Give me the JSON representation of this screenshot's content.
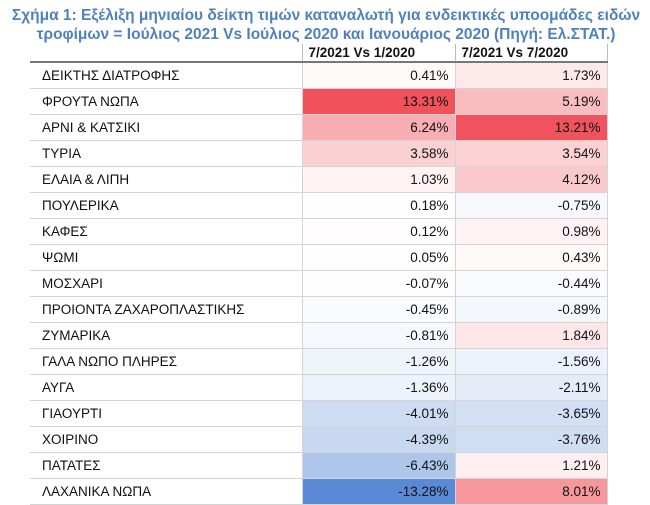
{
  "title": "Σχήμα 1: Εξέλιξη μηνιαίου δείκτη τιμών καταναλωτή για ενδεικτικές υποομάδες ειδών τροφίμων = Ιούλιος 2021 Vs Ιούλιος 2020 και Ιανουάριος 2020 (Πηγή: Ελ.ΣΤΑΤ.)",
  "chart_data": {
    "type": "heatmap",
    "title": "Σχήμα 1: Εξέλιξη μηνιαίου δείκτη τιμών καταναλωτή για ενδεικτικές υποομάδες ειδών τροφίμων = Ιούλιος 2021 Vs Ιούλιος 2020 και Ιανουάριος 2020 (Πηγή: Ελ.ΣΤΑΤ.)",
    "columns": [
      "7/2021 Vs 1/2020",
      "7/2021 Vs 7/2020"
    ],
    "rows": [
      {
        "label": "ΔΕΙΚΤΗΣ ΔΙΑΤΡΟΦΗΣ",
        "values": [
          0.41,
          1.73
        ],
        "labels": [
          "0.41%",
          "1.73%"
        ]
      },
      {
        "label": "ΦΡΟΥΤΑ ΝΩΠΑ",
        "values": [
          13.31,
          5.19
        ],
        "labels": [
          "13.31%",
          "5.19%"
        ]
      },
      {
        "label": "ΑΡΝΙ & ΚΑΤΣΙΚΙ",
        "values": [
          6.24,
          13.21
        ],
        "labels": [
          "6.24%",
          "13.21%"
        ]
      },
      {
        "label": "ΤΥΡΙΑ",
        "values": [
          3.58,
          3.54
        ],
        "labels": [
          "3.58%",
          "3.54%"
        ]
      },
      {
        "label": "ΕΛΑΙΑ & ΛΙΠΗ",
        "values": [
          1.03,
          4.12
        ],
        "labels": [
          "1.03%",
          "4.12%"
        ]
      },
      {
        "label": "ΠΟΥΛΕΡΙΚΑ",
        "values": [
          0.18,
          -0.75
        ],
        "labels": [
          "0.18%",
          "-0.75%"
        ]
      },
      {
        "label": "ΚΑΦΕΣ",
        "values": [
          0.12,
          0.98
        ],
        "labels": [
          "0.12%",
          "0.98%"
        ]
      },
      {
        "label": "ΨΩΜΙ",
        "values": [
          0.05,
          0.43
        ],
        "labels": [
          "0.05%",
          "0.43%"
        ]
      },
      {
        "label": "ΜΟΣΧΑΡΙ",
        "values": [
          -0.07,
          -0.44
        ],
        "labels": [
          "-0.07%",
          "-0.44%"
        ]
      },
      {
        "label": "ΠΡΟΙΟΝΤΑ ΖΑΧΑΡΟΠΛΑΣΤΙΚΗΣ",
        "values": [
          -0.45,
          -0.89
        ],
        "labels": [
          "-0.45%",
          "-0.89%"
        ]
      },
      {
        "label": "ΖΥΜΑΡΙΚΑ",
        "values": [
          -0.81,
          1.84
        ],
        "labels": [
          "-0.81%",
          "1.84%"
        ]
      },
      {
        "label": "ΓΑΛΑ ΝΩΠΟ ΠΛΗΡΕΣ",
        "values": [
          -1.26,
          -1.56
        ],
        "labels": [
          "-1.26%",
          "-1.56%"
        ]
      },
      {
        "label": "ΑΥΓΑ",
        "values": [
          -1.36,
          -2.11
        ],
        "labels": [
          "-1.36%",
          "-2.11%"
        ]
      },
      {
        "label": "ΓΙΑΟΥΡΤΙ",
        "values": [
          -4.01,
          -3.65
        ],
        "labels": [
          "-4.01%",
          "-3.65%"
        ]
      },
      {
        "label": "ΧΟΙΡΙΝΟ",
        "values": [
          -4.39,
          -3.76
        ],
        "labels": [
          "-4.39%",
          "-3.76%"
        ]
      },
      {
        "label": "ΠΑΤΑΤΕΣ",
        "values": [
          -6.43,
          1.21
        ],
        "labels": [
          "-6.43%",
          "1.21%"
        ]
      },
      {
        "label": "ΛΑΧΑΝΙΚΑ ΝΩΠΑ",
        "values": [
          -13.28,
          8.01
        ],
        "labels": [
          "-13.28%",
          "8.01%"
        ]
      }
    ],
    "color_scale": {
      "min": -13.28,
      "max": 13.31,
      "negative": "#5a8ad6",
      "neutral": "#ffffff",
      "positive": "#f0525c"
    },
    "grid": true
  }
}
